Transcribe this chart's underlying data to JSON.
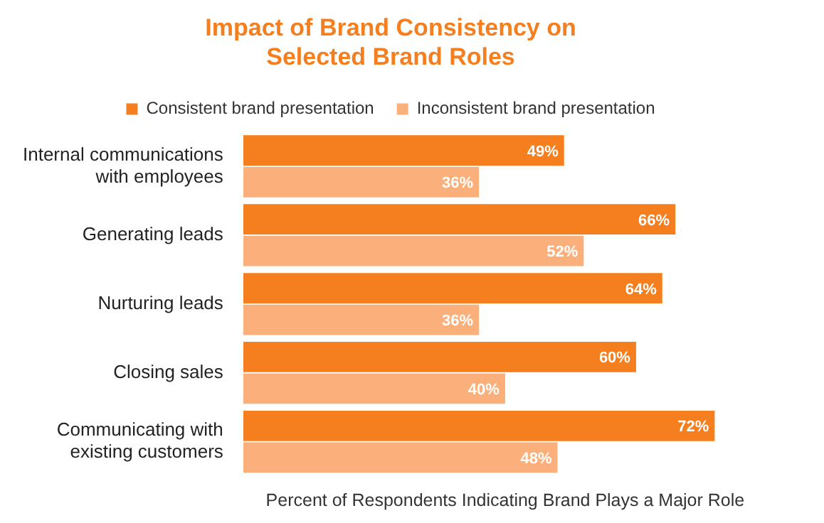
{
  "chart_data": {
    "type": "bar",
    "orientation": "horizontal",
    "title": "Impact of Brand Consistency on Selected Brand Roles",
    "xlabel": "Percent of Respondents Indicating Brand Plays a Major Role",
    "categories": [
      "Internal communications with employees",
      "Generating leads",
      "Nurturing leads",
      "Closing sales",
      "Communicating with existing customers"
    ],
    "series": [
      {
        "name": "Consistent brand presentation",
        "color": "#f57f1f",
        "values": [
          49,
          66,
          64,
          60,
          72
        ],
        "value_labels": [
          "49%",
          "66%",
          "64%",
          "60%",
          "72%"
        ]
      },
      {
        "name": "Inconsistent brand presentation",
        "color": "#fbb07b",
        "values": [
          36,
          52,
          36,
          40,
          48
        ],
        "value_labels": [
          "36%",
          "52%",
          "36%",
          "40%",
          "48%"
        ]
      }
    ],
    "legend": "top",
    "grid": false,
    "tick_labels": "y"
  }
}
